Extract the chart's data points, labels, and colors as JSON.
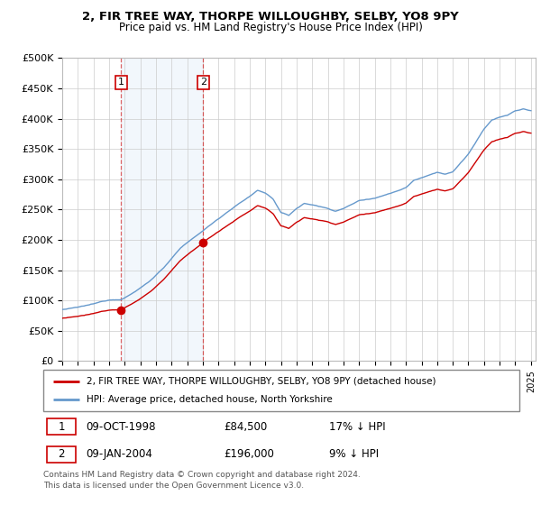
{
  "title": "2, FIR TREE WAY, THORPE WILLOUGHBY, SELBY, YO8 9PY",
  "subtitle": "Price paid vs. HM Land Registry's House Price Index (HPI)",
  "ylabel_ticks": [
    "£0",
    "£50K",
    "£100K",
    "£150K",
    "£200K",
    "£250K",
    "£300K",
    "£350K",
    "£400K",
    "£450K",
    "£500K"
  ],
  "ytick_vals": [
    0,
    50000,
    100000,
    150000,
    200000,
    250000,
    300000,
    350000,
    400000,
    450000,
    500000
  ],
  "xlim_start": 1995.0,
  "xlim_end": 2025.3,
  "ylim": [
    0,
    500000
  ],
  "hpi_color": "#6699cc",
  "price_color": "#cc0000",
  "sale1_x": 1998.78,
  "sale1_y": 84500,
  "sale1_label": "1",
  "sale2_x": 2004.03,
  "sale2_y": 196000,
  "sale2_label": "2",
  "vline_color": "#cc0000",
  "legend_entry1": "2, FIR TREE WAY, THORPE WILLOUGHBY, SELBY, YO8 9PY (detached house)",
  "legend_entry2": "HPI: Average price, detached house, North Yorkshire",
  "table_row1": [
    "1",
    "09-OCT-1998",
    "£84,500",
    "17% ↓ HPI"
  ],
  "table_row2": [
    "2",
    "09-JAN-2004",
    "£196,000",
    "9% ↓ HPI"
  ],
  "footer": "Contains HM Land Registry data © Crown copyright and database right 2024.\nThis data is licensed under the Open Government Licence v3.0.",
  "background_color": "#ffffff",
  "grid_color": "#cccccc",
  "span_color": "#ddeeff"
}
